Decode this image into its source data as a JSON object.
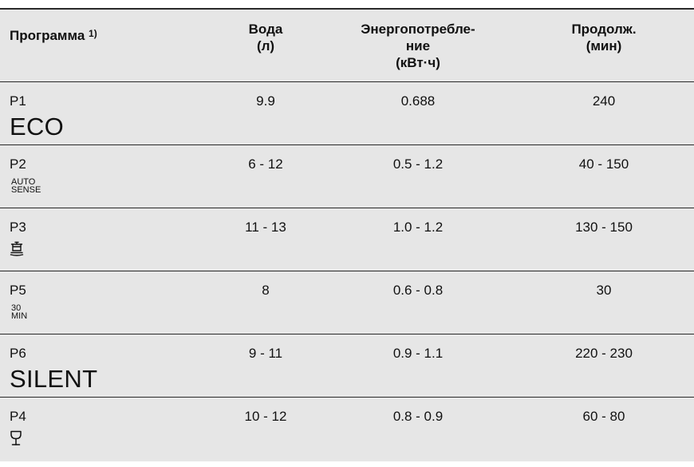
{
  "header": {
    "program": "Программа",
    "program_note": "1)",
    "water_line1": "Вода",
    "water_line2": "(л)",
    "energy_line1": "Энергопотребле-",
    "energy_line2": "ние",
    "energy_line3": "(кВт·ч)",
    "duration_line1": "Продолж.",
    "duration_line2": "(мин)"
  },
  "rows": [
    {
      "code": "P1",
      "symbol": "ECO",
      "water": "9.9",
      "energy": "0.688",
      "duration": "240"
    },
    {
      "code": "P2",
      "symbol_line1": "AUTO",
      "symbol_line2": "SENSE",
      "water": "6 - 12",
      "energy": "0.5 - 1.2",
      "duration": "40 - 150"
    },
    {
      "code": "P3",
      "icon": "pots-icon",
      "water": "11 - 13",
      "energy": "1.0 - 1.2",
      "duration": "130 - 150"
    },
    {
      "code": "P5",
      "symbol_line1": "30",
      "symbol_line2": "MIN",
      "water": "8",
      "energy": "0.6 - 0.8",
      "duration": "30"
    },
    {
      "code": "P6",
      "symbol": "SILENT",
      "water": "9 - 11",
      "energy": "0.9 - 1.1",
      "duration": "220 - 230"
    },
    {
      "code": "P4",
      "icon": "wine-glass-icon",
      "water": "10 - 12",
      "energy": "0.8 - 0.9",
      "duration": "60 - 80"
    }
  ]
}
